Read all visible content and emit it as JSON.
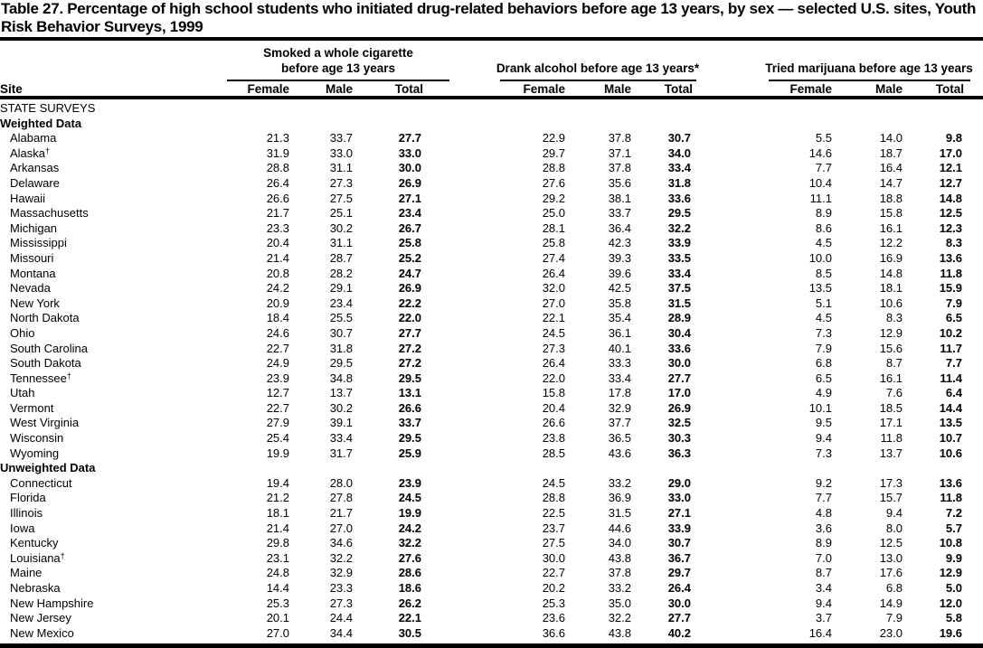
{
  "title": "Table 27. Percentage of high school students who initiated drug-related behaviors before age 13 years, by sex — selected U.S. sites, Youth Risk Behavior Surveys, 1999",
  "header": {
    "site_label": "Site",
    "groups": [
      {
        "label": "Smoked a whole cigarette before age 13 years"
      },
      {
        "label": "Drank alcohol before age 13 years*"
      },
      {
        "label": "Tried marijuana before age 13 years"
      }
    ],
    "sub_columns": [
      "Female",
      "Male",
      "Total"
    ]
  },
  "rows": [
    {
      "kind": "section",
      "site": "STATE SURVEYS"
    },
    {
      "kind": "subsection",
      "site": "Weighted Data"
    },
    {
      "kind": "data",
      "site": "Alabama",
      "cigarette": [
        "21.3",
        "33.7",
        "27.7"
      ],
      "alcohol": [
        "22.9",
        "37.8",
        "30.7"
      ],
      "marijuana": [
        "5.5",
        "14.0",
        "9.8"
      ]
    },
    {
      "kind": "data",
      "site": "Alaska",
      "dagger": "†",
      "cigarette": [
        "31.9",
        "33.0",
        "33.0"
      ],
      "alcohol": [
        "29.7",
        "37.1",
        "34.0"
      ],
      "marijuana": [
        "14.6",
        "18.7",
        "17.0"
      ]
    },
    {
      "kind": "data",
      "site": "Arkansas",
      "cigarette": [
        "28.8",
        "31.1",
        "30.0"
      ],
      "alcohol": [
        "28.8",
        "37.8",
        "33.4"
      ],
      "marijuana": [
        "7.7",
        "16.4",
        "12.1"
      ]
    },
    {
      "kind": "data",
      "site": "Delaware",
      "cigarette": [
        "26.4",
        "27.3",
        "26.9"
      ],
      "alcohol": [
        "27.6",
        "35.6",
        "31.8"
      ],
      "marijuana": [
        "10.4",
        "14.7",
        "12.7"
      ]
    },
    {
      "kind": "data",
      "site": "Hawaii",
      "cigarette": [
        "26.6",
        "27.5",
        "27.1"
      ],
      "alcohol": [
        "29.2",
        "38.1",
        "33.6"
      ],
      "marijuana": [
        "11.1",
        "18.8",
        "14.8"
      ]
    },
    {
      "kind": "data",
      "site": "Massachusetts",
      "cigarette": [
        "21.7",
        "25.1",
        "23.4"
      ],
      "alcohol": [
        "25.0",
        "33.7",
        "29.5"
      ],
      "marijuana": [
        "8.9",
        "15.8",
        "12.5"
      ]
    },
    {
      "kind": "data",
      "site": "Michigan",
      "cigarette": [
        "23.3",
        "30.2",
        "26.7"
      ],
      "alcohol": [
        "28.1",
        "36.4",
        "32.2"
      ],
      "marijuana": [
        "8.6",
        "16.1",
        "12.3"
      ]
    },
    {
      "kind": "data",
      "site": "Mississippi",
      "cigarette": [
        "20.4",
        "31.1",
        "25.8"
      ],
      "alcohol": [
        "25.8",
        "42.3",
        "33.9"
      ],
      "marijuana": [
        "4.5",
        "12.2",
        "8.3"
      ]
    },
    {
      "kind": "data",
      "site": "Missouri",
      "cigarette": [
        "21.4",
        "28.7",
        "25.2"
      ],
      "alcohol": [
        "27.4",
        "39.3",
        "33.5"
      ],
      "marijuana": [
        "10.0",
        "16.9",
        "13.6"
      ]
    },
    {
      "kind": "data",
      "site": "Montana",
      "cigarette": [
        "20.8",
        "28.2",
        "24.7"
      ],
      "alcohol": [
        "26.4",
        "39.6",
        "33.4"
      ],
      "marijuana": [
        "8.5",
        "14.8",
        "11.8"
      ]
    },
    {
      "kind": "data",
      "site": "Nevada",
      "cigarette": [
        "24.2",
        "29.1",
        "26.9"
      ],
      "alcohol": [
        "32.0",
        "42.5",
        "37.5"
      ],
      "marijuana": [
        "13.5",
        "18.1",
        "15.9"
      ]
    },
    {
      "kind": "data",
      "site": "New York",
      "cigarette": [
        "20.9",
        "23.4",
        "22.2"
      ],
      "alcohol": [
        "27.0",
        "35.8",
        "31.5"
      ],
      "marijuana": [
        "5.1",
        "10.6",
        "7.9"
      ]
    },
    {
      "kind": "data",
      "site": "North Dakota",
      "cigarette": [
        "18.4",
        "25.5",
        "22.0"
      ],
      "alcohol": [
        "22.1",
        "35.4",
        "28.9"
      ],
      "marijuana": [
        "4.5",
        "8.3",
        "6.5"
      ]
    },
    {
      "kind": "data",
      "site": "Ohio",
      "cigarette": [
        "24.6",
        "30.7",
        "27.7"
      ],
      "alcohol": [
        "24.5",
        "36.1",
        "30.4"
      ],
      "marijuana": [
        "7.3",
        "12.9",
        "10.2"
      ]
    },
    {
      "kind": "data",
      "site": "South Carolina",
      "cigarette": [
        "22.7",
        "31.8",
        "27.2"
      ],
      "alcohol": [
        "27.3",
        "40.1",
        "33.6"
      ],
      "marijuana": [
        "7.9",
        "15.6",
        "11.7"
      ]
    },
    {
      "kind": "data",
      "site": "South Dakota",
      "cigarette": [
        "24.9",
        "29.5",
        "27.2"
      ],
      "alcohol": [
        "26.4",
        "33.3",
        "30.0"
      ],
      "marijuana": [
        "6.8",
        "8.7",
        "7.7"
      ]
    },
    {
      "kind": "data",
      "site": "Tennessee",
      "dagger": "†",
      "cigarette": [
        "23.9",
        "34.8",
        "29.5"
      ],
      "alcohol": [
        "22.0",
        "33.4",
        "27.7"
      ],
      "marijuana": [
        "6.5",
        "16.1",
        "11.4"
      ]
    },
    {
      "kind": "data",
      "site": "Utah",
      "cigarette": [
        "12.7",
        "13.7",
        "13.1"
      ],
      "alcohol": [
        "15.8",
        "17.8",
        "17.0"
      ],
      "marijuana": [
        "4.9",
        "7.6",
        "6.4"
      ]
    },
    {
      "kind": "data",
      "site": "Vermont",
      "cigarette": [
        "22.7",
        "30.2",
        "26.6"
      ],
      "alcohol": [
        "20.4",
        "32.9",
        "26.9"
      ],
      "marijuana": [
        "10.1",
        "18.5",
        "14.4"
      ]
    },
    {
      "kind": "data",
      "site": "West Virginia",
      "cigarette": [
        "27.9",
        "39.1",
        "33.7"
      ],
      "alcohol": [
        "26.6",
        "37.7",
        "32.5"
      ],
      "marijuana": [
        "9.5",
        "17.1",
        "13.5"
      ]
    },
    {
      "kind": "data",
      "site": "Wisconsin",
      "cigarette": [
        "25.4",
        "33.4",
        "29.5"
      ],
      "alcohol": [
        "23.8",
        "36.5",
        "30.3"
      ],
      "marijuana": [
        "9.4",
        "11.8",
        "10.7"
      ]
    },
    {
      "kind": "data",
      "site": "Wyoming",
      "cigarette": [
        "19.9",
        "31.7",
        "25.9"
      ],
      "alcohol": [
        "28.5",
        "43.6",
        "36.3"
      ],
      "marijuana": [
        "7.3",
        "13.7",
        "10.6"
      ]
    },
    {
      "kind": "subsection",
      "site": "Unweighted Data"
    },
    {
      "kind": "data",
      "site": "Connecticut",
      "cigarette": [
        "19.4",
        "28.0",
        "23.9"
      ],
      "alcohol": [
        "24.5",
        "33.2",
        "29.0"
      ],
      "marijuana": [
        "9.2",
        "17.3",
        "13.6"
      ]
    },
    {
      "kind": "data",
      "site": "Florida",
      "cigarette": [
        "21.2",
        "27.8",
        "24.5"
      ],
      "alcohol": [
        "28.8",
        "36.9",
        "33.0"
      ],
      "marijuana": [
        "7.7",
        "15.7",
        "11.8"
      ]
    },
    {
      "kind": "data",
      "site": "Illinois",
      "cigarette": [
        "18.1",
        "21.7",
        "19.9"
      ],
      "alcohol": [
        "22.5",
        "31.5",
        "27.1"
      ],
      "marijuana": [
        "4.8",
        "9.4",
        "7.2"
      ]
    },
    {
      "kind": "data",
      "site": "Iowa",
      "cigarette": [
        "21.4",
        "27.0",
        "24.2"
      ],
      "alcohol": [
        "23.7",
        "44.6",
        "33.9"
      ],
      "marijuana": [
        "3.6",
        "8.0",
        "5.7"
      ]
    },
    {
      "kind": "data",
      "site": "Kentucky",
      "cigarette": [
        "29.8",
        "34.6",
        "32.2"
      ],
      "alcohol": [
        "27.5",
        "34.0",
        "30.7"
      ],
      "marijuana": [
        "8.9",
        "12.5",
        "10.8"
      ]
    },
    {
      "kind": "data",
      "site": "Louisiana",
      "dagger": "†",
      "cigarette": [
        "23.1",
        "32.2",
        "27.6"
      ],
      "alcohol": [
        "30.0",
        "43.8",
        "36.7"
      ],
      "marijuana": [
        "7.0",
        "13.0",
        "9.9"
      ]
    },
    {
      "kind": "data",
      "site": "Maine",
      "cigarette": [
        "24.8",
        "32.9",
        "28.6"
      ],
      "alcohol": [
        "22.7",
        "37.8",
        "29.7"
      ],
      "marijuana": [
        "8.7",
        "17.6",
        "12.9"
      ]
    },
    {
      "kind": "data",
      "site": "Nebraska",
      "cigarette": [
        "14.4",
        "23.3",
        "18.6"
      ],
      "alcohol": [
        "20.2",
        "33.2",
        "26.4"
      ],
      "marijuana": [
        "3.4",
        "6.8",
        "5.0"
      ]
    },
    {
      "kind": "data",
      "site": "New Hampshire",
      "cigarette": [
        "25.3",
        "27.3",
        "26.2"
      ],
      "alcohol": [
        "25.3",
        "35.0",
        "30.0"
      ],
      "marijuana": [
        "9.4",
        "14.9",
        "12.0"
      ]
    },
    {
      "kind": "data",
      "site": "New Jersey",
      "cigarette": [
        "20.1",
        "24.4",
        "22.1"
      ],
      "alcohol": [
        "23.6",
        "32.2",
        "27.7"
      ],
      "marijuana": [
        "3.7",
        "7.9",
        "5.8"
      ]
    },
    {
      "kind": "data",
      "site": "New Mexico",
      "cigarette": [
        "27.0",
        "34.4",
        "30.5"
      ],
      "alcohol": [
        "36.6",
        "43.8",
        "40.2"
      ],
      "marijuana": [
        "16.4",
        "23.0",
        "19.6"
      ]
    }
  ]
}
